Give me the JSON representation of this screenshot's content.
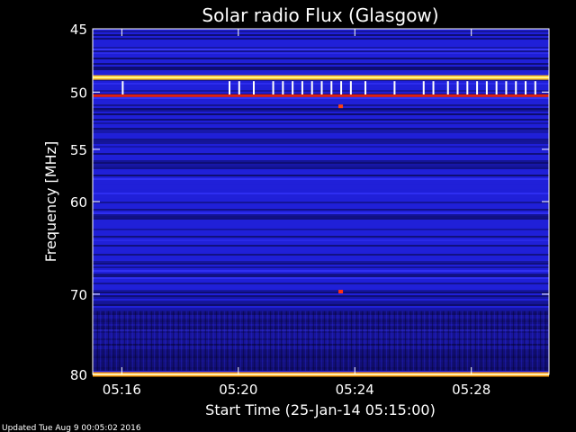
{
  "chart_data": {
    "type": "heatmap",
    "title": "Solar radio Flux (Glasgow)",
    "xlabel": "Start Time (25-Jan-14 05:15:00)",
    "ylabel": "Frequency [MHz]",
    "x_unit": "time",
    "xlim": [
      "05:15:00",
      "05:30:40"
    ],
    "ylim": [
      45,
      80
    ],
    "y_scale": "log",
    "x_ticks": [
      "05:16",
      "05:20",
      "05:24",
      "05:28"
    ],
    "y_ticks": [
      45,
      50,
      55,
      60,
      70,
      80
    ],
    "colormap": {
      "low": "#0a0a5a",
      "mid": "#2020d8",
      "high": "#ffb000",
      "max": "#ffffa0"
    },
    "features": [
      {
        "kind": "bright-line",
        "frequency_mhz": 48.8,
        "color": "#ffc020"
      },
      {
        "kind": "red-line",
        "frequency_mhz": 50.3,
        "color": "#e02010"
      },
      {
        "kind": "bright-line",
        "frequency_mhz": 80.0,
        "color": "#ffa010"
      },
      {
        "kind": "spot",
        "time": "05:23:30",
        "frequency_mhz": 51.2,
        "color": "#ff4010"
      },
      {
        "kind": "spot",
        "time": "05:23:30",
        "frequency_mhz": 69.7,
        "color": "#ff3010"
      }
    ]
  },
  "footer": {
    "updated": "Updated Tue Aug  9 00:05:02 2016"
  }
}
